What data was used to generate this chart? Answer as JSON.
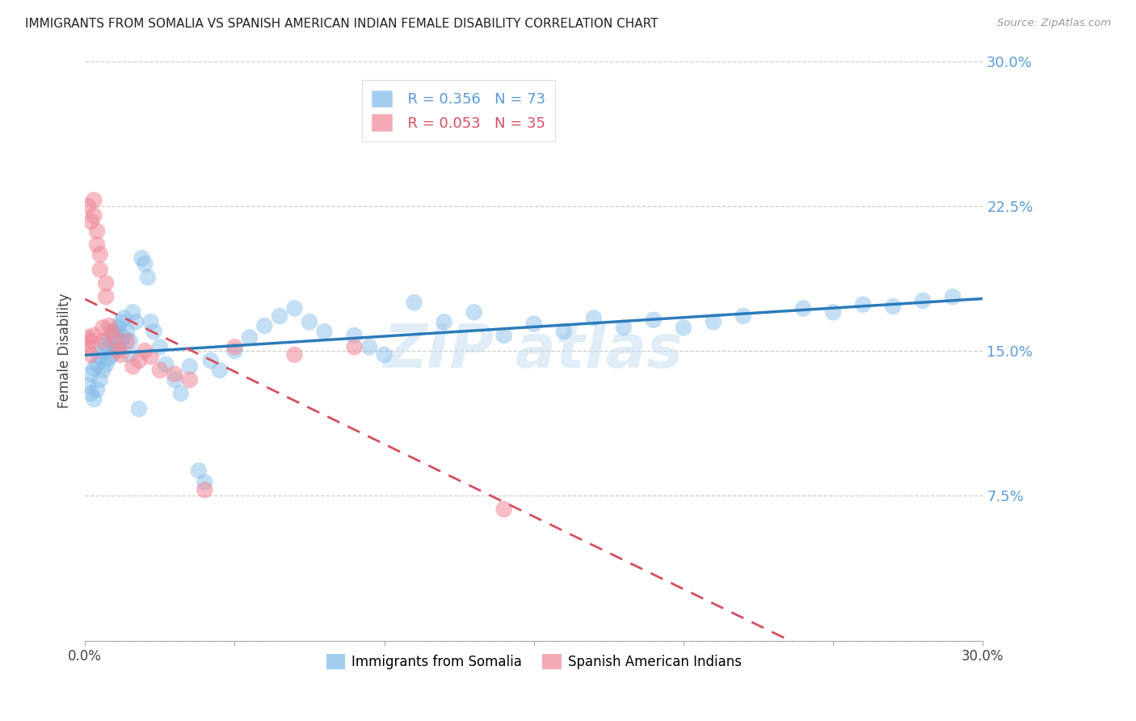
{
  "title": "IMMIGRANTS FROM SOMALIA VS SPANISH AMERICAN INDIAN FEMALE DISABILITY CORRELATION CHART",
  "source": "Source: ZipAtlas.com",
  "ylabel": "Female Disability",
  "xmin": 0.0,
  "xmax": 0.3,
  "ymin": 0.0,
  "ymax": 0.3,
  "yticks": [
    0.0,
    0.075,
    0.15,
    0.225,
    0.3
  ],
  "ytick_labels": [
    "",
    "7.5%",
    "15.0%",
    "22.5%",
    "30.0%"
  ],
  "xticks": [
    0.0,
    0.05,
    0.1,
    0.15,
    0.2,
    0.25,
    0.3
  ],
  "xtick_labels": [
    "0.0%",
    "",
    "",
    "",
    "",
    "",
    "30.0%"
  ],
  "legend_r1": "R = 0.356",
  "legend_n1": "N = 73",
  "legend_r2": "R = 0.053",
  "legend_n2": "N = 35",
  "color_somalia": "#7db8e8",
  "color_spanish": "#f08898",
  "color_line_somalia": "#2b7bba",
  "color_line_spanish": "#d45060",
  "series1_label": "Immigrants from Somalia",
  "series2_label": "Spanish American Indians",
  "somalia_x": [
    0.001,
    0.002,
    0.002,
    0.003,
    0.003,
    0.004,
    0.004,
    0.005,
    0.005,
    0.006,
    0.006,
    0.007,
    0.007,
    0.008,
    0.008,
    0.009,
    0.009,
    0.01,
    0.01,
    0.011,
    0.011,
    0.012,
    0.012,
    0.013,
    0.013,
    0.014,
    0.015,
    0.015,
    0.016,
    0.017,
    0.018,
    0.019,
    0.02,
    0.021,
    0.022,
    0.023,
    0.025,
    0.027,
    0.03,
    0.032,
    0.035,
    0.038,
    0.04,
    0.042,
    0.045,
    0.05,
    0.055,
    0.06,
    0.065,
    0.07,
    0.075,
    0.08,
    0.09,
    0.095,
    0.1,
    0.11,
    0.12,
    0.13,
    0.14,
    0.15,
    0.16,
    0.17,
    0.18,
    0.19,
    0.2,
    0.21,
    0.22,
    0.24,
    0.25,
    0.26,
    0.27,
    0.28,
    0.29
  ],
  "somalia_y": [
    0.132,
    0.138,
    0.128,
    0.141,
    0.125,
    0.143,
    0.13,
    0.147,
    0.135,
    0.15,
    0.14,
    0.153,
    0.143,
    0.156,
    0.146,
    0.158,
    0.148,
    0.16,
    0.15,
    0.162,
    0.152,
    0.165,
    0.155,
    0.167,
    0.157,
    0.16,
    0.155,
    0.148,
    0.17,
    0.165,
    0.12,
    0.198,
    0.195,
    0.188,
    0.165,
    0.16,
    0.152,
    0.143,
    0.135,
    0.128,
    0.142,
    0.088,
    0.082,
    0.145,
    0.14,
    0.15,
    0.157,
    0.163,
    0.168,
    0.172,
    0.165,
    0.16,
    0.158,
    0.152,
    0.148,
    0.175,
    0.165,
    0.17,
    0.158,
    0.164,
    0.16,
    0.167,
    0.162,
    0.166,
    0.162,
    0.165,
    0.168,
    0.172,
    0.17,
    0.174,
    0.173,
    0.176,
    0.178
  ],
  "spanish_x": [
    0.001,
    0.001,
    0.001,
    0.002,
    0.002,
    0.002,
    0.003,
    0.003,
    0.003,
    0.004,
    0.004,
    0.005,
    0.005,
    0.006,
    0.006,
    0.007,
    0.007,
    0.008,
    0.009,
    0.01,
    0.011,
    0.012,
    0.014,
    0.016,
    0.018,
    0.02,
    0.022,
    0.025,
    0.03,
    0.035,
    0.04,
    0.05,
    0.07,
    0.09,
    0.14
  ],
  "spanish_y": [
    0.152,
    0.157,
    0.225,
    0.217,
    0.155,
    0.148,
    0.228,
    0.22,
    0.158,
    0.212,
    0.205,
    0.2,
    0.192,
    0.162,
    0.155,
    0.185,
    0.178,
    0.163,
    0.16,
    0.156,
    0.15,
    0.148,
    0.155,
    0.142,
    0.145,
    0.15,
    0.147,
    0.14,
    0.138,
    0.135,
    0.078,
    0.152,
    0.148,
    0.152,
    0.068
  ]
}
